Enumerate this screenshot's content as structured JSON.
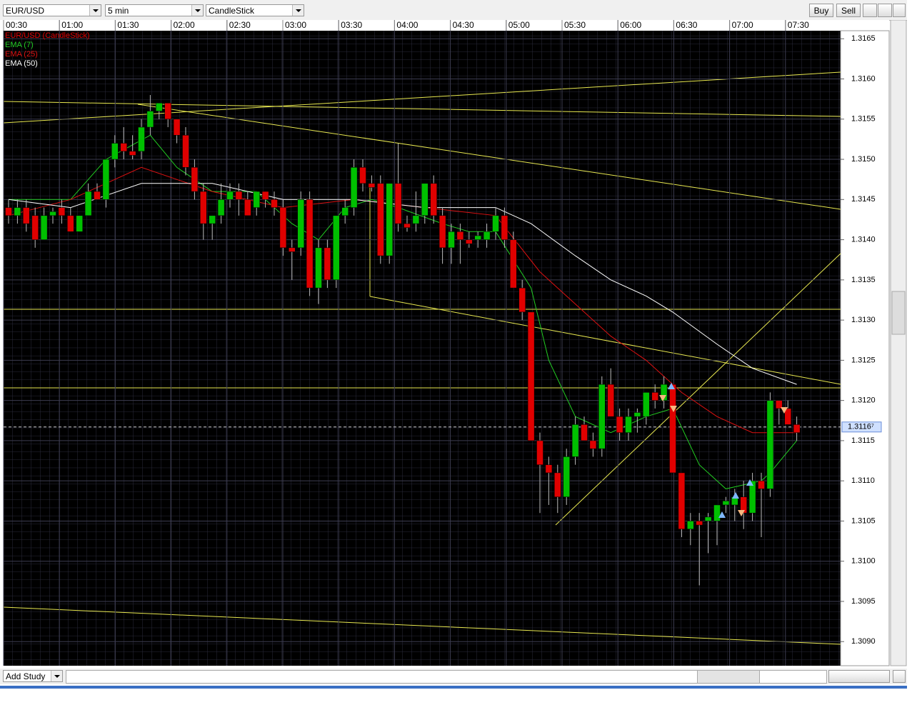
{
  "toolbar": {
    "symbol": "EUR/USD",
    "interval": "5 min",
    "chart_type": "CandleStick",
    "buy": "Buy",
    "sell": "Sell"
  },
  "footer": {
    "add_study": "Add Study"
  },
  "chart_data": {
    "type": "candlestick",
    "name": "EUR/USD (CandleStick)",
    "up_color": "#00c000",
    "down_color": "#e00000",
    "time_labels": [
      "00:30",
      "01:00",
      "01:30",
      "02:00",
      "02:30",
      "03:00",
      "03:30",
      "04:00",
      "04:30",
      "05:00",
      "05:30",
      "06:00",
      "06:30",
      "07:00",
      "07:30"
    ],
    "ylim": [
      1.3087,
      1.3166
    ],
    "yticks": [
      1.3165,
      {
        "value": 1.316,
        "label": "1.3160"
      },
      1.3155,
      {
        "value": 1.315,
        "label": "1.3150"
      },
      1.3145,
      {
        "value": 1.314,
        "label": "1.3140"
      },
      1.3135,
      {
        "value": 1.313,
        "label": "1.3130"
      },
      1.3125,
      {
        "value": 1.312,
        "label": "1.3120"
      },
      1.3115,
      {
        "value": 1.311,
        "label": "1.3110"
      },
      1.3105,
      {
        "value": 1.31,
        "label": "1.3100"
      },
      1.3095,
      {
        "value": 1.309,
        "label": "1.3090"
      }
    ],
    "price_marker": {
      "value": 1.31167,
      "label": "1.3116⁷"
    },
    "ohlc": [
      [
        1.3144,
        1.3145,
        1.3142,
        1.3143
      ],
      [
        1.3143,
        1.3145,
        1.3142,
        1.3144
      ],
      [
        1.3144,
        1.3145,
        1.3141,
        1.3142
      ],
      [
        1.3143,
        1.3144,
        1.3139,
        1.314
      ],
      [
        1.314,
        1.3144,
        1.314,
        1.3143
      ],
      [
        1.3143,
        1.3144,
        1.3142,
        1.31435
      ],
      [
        1.3144,
        1.3145,
        1.3142,
        1.3143
      ],
      [
        1.3143,
        1.3144,
        1.3141,
        1.3141
      ],
      [
        1.3141,
        1.3143,
        1.3141,
        1.3143
      ],
      [
        1.3143,
        1.3147,
        1.3143,
        1.3146
      ],
      [
        1.3146,
        1.3147,
        1.3145,
        1.3145
      ],
      [
        1.3145,
        1.315,
        1.3144,
        1.315
      ],
      [
        1.315,
        1.3153,
        1.3149,
        1.3152
      ],
      [
        1.3152,
        1.3154,
        1.315,
        1.3151
      ],
      [
        1.3151,
        1.3153,
        1.315,
        1.31505
      ],
      [
        1.3151,
        1.3155,
        1.315,
        1.3154
      ],
      [
        1.3154,
        1.3158,
        1.3153,
        1.3156
      ],
      [
        1.3156,
        1.3157,
        1.3155,
        1.3157
      ],
      [
        1.3157,
        1.3157,
        1.3154,
        1.3155
      ],
      [
        1.3155,
        1.3155,
        1.3152,
        1.3153
      ],
      [
        1.3153,
        1.3154,
        1.3148,
        1.3149
      ],
      [
        1.3149,
        1.315,
        1.3145,
        1.3146
      ],
      [
        1.3146,
        1.3147,
        1.314,
        1.3142
      ],
      [
        1.3142,
        1.3143,
        1.314,
        1.3143
      ],
      [
        1.3143,
        1.3147,
        1.3142,
        1.3145
      ],
      [
        1.3145,
        1.3147,
        1.3144,
        1.3146
      ],
      [
        1.3146,
        1.3147,
        1.3143,
        1.3145
      ],
      [
        1.3145,
        1.3146,
        1.3143,
        1.3143
      ],
      [
        1.3144,
        1.3146,
        1.3143,
        1.3146
      ],
      [
        1.3146,
        1.3146,
        1.3144,
        1.3145
      ],
      [
        1.3145,
        1.3146,
        1.3143,
        1.3144
      ],
      [
        1.3144,
        1.3145,
        1.3138,
        1.3139
      ],
      [
        1.3139,
        1.314,
        1.3135,
        1.31385
      ],
      [
        1.3139,
        1.3146,
        1.3138,
        1.3145
      ],
      [
        1.3145,
        1.3146,
        1.3133,
        1.3134
      ],
      [
        1.3134,
        1.314,
        1.3132,
        1.3139
      ],
      [
        1.3139,
        1.314,
        1.3134,
        1.3135
      ],
      [
        1.3135,
        1.3143,
        1.3134,
        1.3143
      ],
      [
        1.3143,
        1.3145,
        1.3142,
        1.3144
      ],
      [
        1.3144,
        1.315,
        1.3143,
        1.3149
      ],
      [
        1.3149,
        1.315,
        1.3146,
        1.3147
      ],
      [
        1.3147,
        1.3148,
        1.3146,
        1.31465
      ],
      [
        1.3147,
        1.3148,
        1.3137,
        1.3138
      ],
      [
        1.3138,
        1.3147,
        1.3137,
        1.3147
      ],
      [
        1.3147,
        1.3152,
        1.3141,
        1.3142
      ],
      [
        1.3142,
        1.3143,
        1.3141,
        1.31415
      ],
      [
        1.3142,
        1.3146,
        1.3141,
        1.3143
      ],
      [
        1.3143,
        1.3147,
        1.3142,
        1.3147
      ],
      [
        1.3147,
        1.3148,
        1.3142,
        1.3143
      ],
      [
        1.3143,
        1.3144,
        1.3137,
        1.3139
      ],
      [
        1.3139,
        1.3142,
        1.3137,
        1.3141
      ],
      [
        1.3141,
        1.3142,
        1.3137,
        1.314
      ],
      [
        1.314,
        1.3141,
        1.3139,
        1.31395
      ],
      [
        1.314,
        1.3141,
        1.3139,
        1.31405
      ],
      [
        1.314,
        1.3142,
        1.3139,
        1.3141
      ],
      [
        1.3141,
        1.3144,
        1.314,
        1.3143
      ],
      [
        1.3143,
        1.3144,
        1.3139,
        1.314
      ],
      [
        1.314,
        1.3141,
        1.3134,
        1.3134
      ],
      [
        1.3134,
        1.3135,
        1.313,
        1.3131
      ],
      [
        1.3131,
        1.3131,
        1.3115,
        1.3115
      ],
      [
        1.3115,
        1.3116,
        1.3106,
        1.3112
      ],
      [
        1.3112,
        1.3113,
        1.3107,
        1.3111
      ],
      [
        1.3111,
        1.3112,
        1.3106,
        1.3108
      ],
      [
        1.3108,
        1.3114,
        1.3107,
        1.3113
      ],
      [
        1.3113,
        1.3118,
        1.3112,
        1.3117
      ],
      [
        1.3117,
        1.3118,
        1.3115,
        1.3115
      ],
      [
        1.3115,
        1.3116,
        1.3113,
        1.3114
      ],
      [
        1.3114,
        1.3123,
        1.3113,
        1.3122
      ],
      [
        1.3122,
        1.3124,
        1.3118,
        1.3118
      ],
      [
        1.3118,
        1.3119,
        1.3115,
        1.3116
      ],
      [
        1.3116,
        1.3119,
        1.3115,
        1.3118
      ],
      [
        1.3118,
        1.3119,
        1.3116,
        1.31185
      ],
      [
        1.3118,
        1.3121,
        1.3117,
        1.3121
      ],
      [
        1.3121,
        1.3122,
        1.3119,
        1.312
      ],
      [
        1.312,
        1.3123,
        1.3119,
        1.3122
      ],
      [
        1.3122,
        1.3122,
        1.3111,
        1.3111
      ],
      [
        1.3111,
        1.3111,
        1.3103,
        1.3104
      ],
      [
        1.3104,
        1.3106,
        1.3102,
        1.3105
      ],
      [
        1.3105,
        1.3106,
        1.3097,
        1.31045
      ],
      [
        1.3105,
        1.3106,
        1.3101,
        1.31055
      ],
      [
        1.3105,
        1.3107,
        1.3102,
        1.3107
      ],
      [
        1.3107,
        1.3108,
        1.3106,
        1.31075
      ],
      [
        1.3107,
        1.3109,
        1.3105,
        1.3108
      ],
      [
        1.3108,
        1.311,
        1.3104,
        1.3106
      ],
      [
        1.3106,
        1.3111,
        1.3105,
        1.311
      ],
      [
        1.311,
        1.3111,
        1.3103,
        1.3109
      ],
      [
        1.3109,
        1.3121,
        1.3108,
        1.312
      ],
      [
        1.312,
        1.312,
        1.3117,
        1.3119
      ],
      [
        1.3119,
        1.312,
        1.3117,
        1.3117
      ],
      [
        1.3117,
        1.3118,
        1.3115,
        1.3116
      ]
    ],
    "indicators": [
      {
        "name": "EMA (7)",
        "color": "#22cc22",
        "x": [
          0,
          7,
          11,
          16,
          19,
          23,
          28,
          32,
          35,
          38,
          41,
          44,
          49,
          52,
          55,
          59,
          61,
          64,
          68,
          72,
          75,
          78,
          81,
          85,
          86,
          89
        ],
        "values": [
          1.3145,
          1.3145,
          1.315,
          1.3153,
          1.3149,
          1.3146,
          1.3146,
          1.3142,
          1.314,
          1.3144,
          1.3145,
          1.3144,
          1.3142,
          1.3141,
          1.3141,
          1.3134,
          1.3125,
          1.3118,
          1.3116,
          1.3118,
          1.3119,
          1.3112,
          1.3109,
          1.311,
          1.3111,
          1.3115
        ]
      },
      {
        "name": "EMA (25)",
        "color": "#dd1111",
        "x": [
          0,
          7,
          15,
          23,
          31,
          39,
          47,
          55,
          60,
          64,
          68,
          72,
          76,
          80,
          84,
          89
        ],
        "values": [
          1.3143,
          1.3145,
          1.3149,
          1.3146,
          1.3144,
          1.3145,
          1.3144,
          1.3143,
          1.3136,
          1.3132,
          1.3128,
          1.3125,
          1.3121,
          1.3118,
          1.3116,
          1.3116
        ]
      },
      {
        "name": "EMA (50)",
        "color": "#ffffff",
        "x": [
          0,
          7,
          15,
          23,
          31,
          39,
          47,
          55,
          59,
          64,
          68,
          72,
          75,
          80,
          84,
          89
        ],
        "values": [
          1.3145,
          1.3144,
          1.3147,
          1.3147,
          1.3145,
          1.3145,
          1.3144,
          1.3144,
          1.3142,
          1.3138,
          1.3135,
          1.3133,
          1.3131,
          1.3127,
          1.3124,
          1.3122
        ]
      }
    ]
  }
}
